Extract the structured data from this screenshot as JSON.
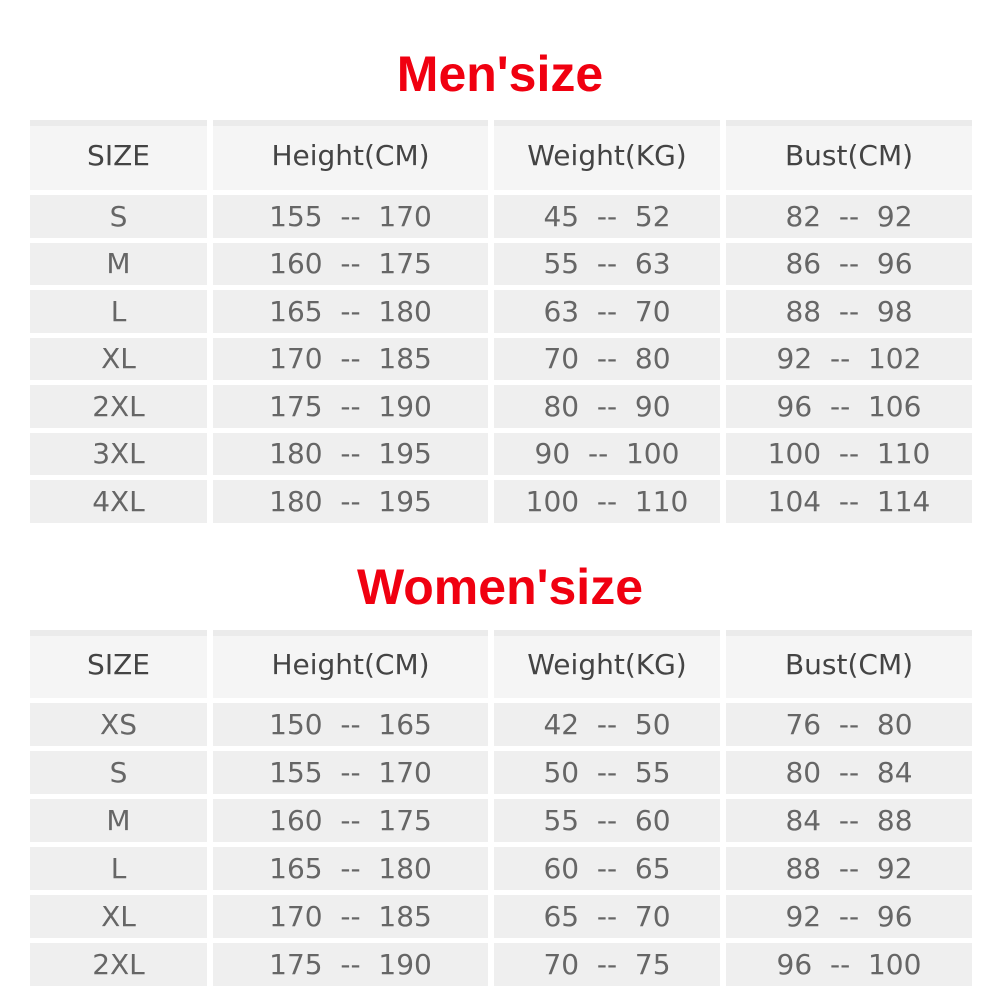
{
  "men": {
    "title": "Men'size",
    "headers": [
      "SIZE",
      "Height(CM)",
      "Weight(KG)",
      "Bust(CM)"
    ],
    "rows": [
      [
        "S",
        "155  --  170",
        "45  --  52",
        "82  --  92"
      ],
      [
        "M",
        "160  --  175",
        "55  --  63",
        "86  --  96"
      ],
      [
        "L",
        "165  --  180",
        "63  --  70",
        "88  --  98"
      ],
      [
        "XL",
        "170  --  185",
        "70  --  80",
        "92  --  102"
      ],
      [
        "2XL",
        "175  --  190",
        "80  --  90",
        "96  --  106"
      ],
      [
        "3XL",
        "180  --  195",
        "90  --  100",
        "100  --  110"
      ],
      [
        "4XL",
        "180  --  195",
        "100  --  110",
        "104  --  114"
      ]
    ]
  },
  "women": {
    "title": "Women'size",
    "headers": [
      "SIZE",
      "Height(CM)",
      "Weight(KG)",
      "Bust(CM)"
    ],
    "rows": [
      [
        "XS",
        "150  --  165",
        "42  --  50",
        "76  --  80"
      ],
      [
        "S",
        "155  --  170",
        "50  --  55",
        "80  --  84"
      ],
      [
        "M",
        "160  --  175",
        "55  --  60",
        "84  --  88"
      ],
      [
        "L",
        "165  --  180",
        "60  --  65",
        "88  --  92"
      ],
      [
        "XL",
        "170  --  185",
        "65  --  70",
        "92  --  96"
      ],
      [
        "2XL",
        "175  --  190",
        "70  --  75",
        "96  --  100"
      ]
    ]
  },
  "colors": {
    "title": "#f00010",
    "cell": "#efefef",
    "text": "#666666"
  }
}
